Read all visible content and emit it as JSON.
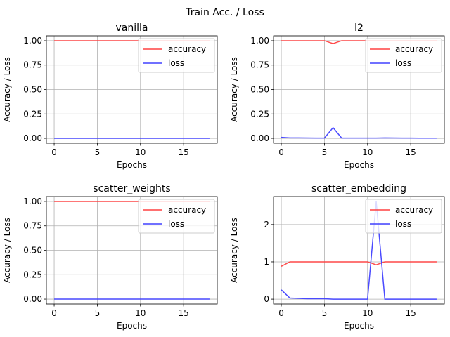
{
  "figure": {
    "title": "Train Acc. / Loss"
  },
  "colors": {
    "accuracy": "#ff4040",
    "loss": "#4040ff"
  },
  "chart_data": [
    {
      "type": "line",
      "title": "vanilla",
      "xlabel": "Epochs",
      "ylabel": "Accuracy / Loss",
      "xlim": [
        -0.9,
        18.9
      ],
      "ylim": [
        -0.05,
        1.05
      ],
      "xticks": [
        0,
        5,
        10,
        15
      ],
      "yticks": [
        0.0,
        0.25,
        0.5,
        0.75,
        1.0
      ],
      "ytick_labels": [
        "0.00",
        "0.25",
        "0.50",
        "0.75",
        "1.00"
      ],
      "grid": true,
      "legend": "upper right",
      "x": [
        0,
        1,
        2,
        3,
        4,
        5,
        6,
        7,
        8,
        9,
        10,
        11,
        12,
        13,
        14,
        15,
        16,
        17,
        18
      ],
      "series": [
        {
          "name": "accuracy",
          "color": "#ff4040",
          "values": [
            1,
            1,
            1,
            1,
            1,
            1,
            1,
            1,
            1,
            1,
            1,
            1,
            1,
            1,
            1,
            1,
            1,
            1,
            1
          ]
        },
        {
          "name": "loss",
          "color": "#4040ff",
          "values": [
            0,
            0,
            0,
            0,
            0,
            0,
            0,
            0,
            0,
            0,
            0,
            0,
            0,
            0,
            0,
            0,
            0,
            0,
            0
          ]
        }
      ]
    },
    {
      "type": "line",
      "title": "l2",
      "xlabel": "Epochs",
      "ylabel": "Accuracy / Loss",
      "xlim": [
        -0.9,
        18.9
      ],
      "ylim": [
        -0.05,
        1.05
      ],
      "xticks": [
        0,
        5,
        10,
        15
      ],
      "yticks": [
        0.0,
        0.25,
        0.5,
        0.75,
        1.0
      ],
      "ytick_labels": [
        "0.00",
        "0.25",
        "0.50",
        "0.75",
        "1.00"
      ],
      "grid": true,
      "legend": "upper right",
      "x": [
        0,
        1,
        2,
        3,
        4,
        5,
        6,
        7,
        8,
        9,
        10,
        11,
        12,
        13,
        14,
        15,
        16,
        17,
        18
      ],
      "series": [
        {
          "name": "accuracy",
          "color": "#ff4040",
          "values": [
            1,
            1,
            1,
            1,
            1,
            1,
            0.97,
            1,
            1,
            1,
            1,
            1,
            1,
            1,
            1,
            1,
            1,
            1,
            1
          ]
        },
        {
          "name": "loss",
          "color": "#4040ff",
          "values": [
            0.01,
            0.005,
            0.005,
            0.004,
            0.003,
            0.003,
            0.11,
            0.003,
            0.003,
            0.003,
            0.003,
            0.003,
            0.005,
            0.004,
            0.003,
            0.003,
            0.002,
            0.002,
            0.002
          ]
        }
      ]
    },
    {
      "type": "line",
      "title": "scatter_weights",
      "xlabel": "Epochs",
      "ylabel": "Accuracy / Loss",
      "xlim": [
        -0.9,
        18.9
      ],
      "ylim": [
        -0.05,
        1.05
      ],
      "xticks": [
        0,
        5,
        10,
        15
      ],
      "yticks": [
        0.0,
        0.25,
        0.5,
        0.75,
        1.0
      ],
      "ytick_labels": [
        "0.00",
        "0.25",
        "0.50",
        "0.75",
        "1.00"
      ],
      "grid": true,
      "legend": "upper right",
      "x": [
        0,
        1,
        2,
        3,
        4,
        5,
        6,
        7,
        8,
        9,
        10,
        11,
        12,
        13,
        14,
        15,
        16,
        17,
        18
      ],
      "series": [
        {
          "name": "accuracy",
          "color": "#ff4040",
          "values": [
            1,
            1,
            1,
            1,
            1,
            1,
            1,
            1,
            1,
            1,
            1,
            1,
            1,
            1,
            1,
            1,
            1,
            1,
            1
          ]
        },
        {
          "name": "loss",
          "color": "#4040ff",
          "values": [
            0,
            0,
            0,
            0,
            0,
            0,
            0,
            0,
            0,
            0,
            0,
            0,
            0,
            0,
            0,
            0,
            0,
            0,
            0
          ]
        }
      ]
    },
    {
      "type": "line",
      "title": "scatter_embedding",
      "xlabel": "Epochs",
      "ylabel": "Accuracy / Loss",
      "xlim": [
        -0.9,
        18.9
      ],
      "ylim": [
        -0.13,
        2.75
      ],
      "xticks": [
        0,
        5,
        10,
        15
      ],
      "yticks": [
        0,
        1,
        2
      ],
      "ytick_labels": [
        "0",
        "1",
        "2"
      ],
      "grid": true,
      "legend": "upper right",
      "x": [
        0,
        1,
        2,
        3,
        4,
        5,
        6,
        7,
        8,
        9,
        10,
        11,
        12,
        13,
        14,
        15,
        16,
        17,
        18
      ],
      "series": [
        {
          "name": "accuracy",
          "color": "#ff4040",
          "values": [
            0.88,
            1,
            1,
            1,
            1,
            1,
            1,
            1,
            1,
            1,
            1,
            0.92,
            1,
            1,
            1,
            1,
            1,
            1,
            1
          ]
        },
        {
          "name": "loss",
          "color": "#4040ff",
          "values": [
            0.25,
            0.03,
            0.02,
            0.01,
            0.01,
            0.01,
            0,
            0,
            0,
            0,
            0,
            2.62,
            0,
            0,
            0,
            0,
            0,
            0,
            0
          ]
        }
      ]
    }
  ]
}
